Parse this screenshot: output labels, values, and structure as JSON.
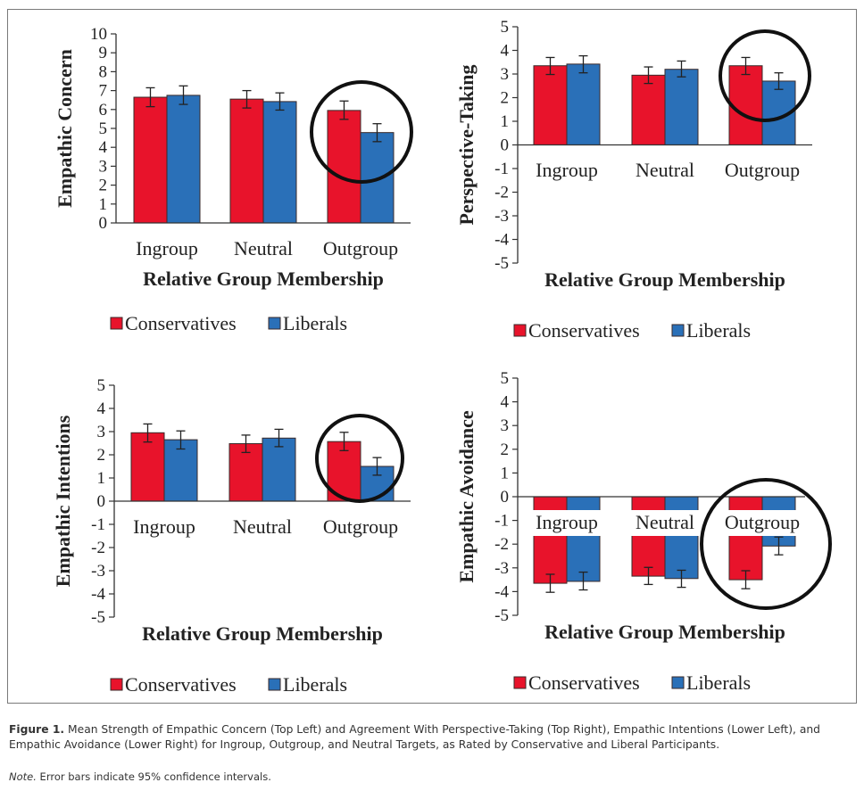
{
  "colors": {
    "conservatives": "#e8132b",
    "liberals": "#2a70b8",
    "bar_outline": "#3a2a2a",
    "axis": "#333333",
    "circle": "#111111"
  },
  "legend": [
    {
      "label": "Conservatives",
      "color_key": "conservatives"
    },
    {
      "label": "Liberals",
      "color_key": "liberals"
    }
  ],
  "chart_data": [
    {
      "id": "empathic-concern",
      "type": "bar",
      "position": "top-left",
      "title": "",
      "ylabel": "Empathic Concern",
      "xlabel": "Relative Group Membership",
      "ylim": [
        0,
        10
      ],
      "yticks": [
        0,
        1,
        2,
        3,
        4,
        5,
        6,
        7,
        8,
        9,
        10
      ],
      "categories": [
        "Ingroup",
        "Neutral",
        "Outgroup"
      ],
      "category_labels_below_axis": true,
      "series": [
        {
          "name": "Conservatives",
          "values": [
            6.65,
            6.55,
            5.95
          ],
          "ci": [
            [
              6.15,
              7.15
            ],
            [
              6.08,
              7.0
            ],
            [
              5.48,
              6.45
            ]
          ]
        },
        {
          "name": "Liberals",
          "values": [
            6.75,
            6.42,
            4.78
          ],
          "ci": [
            [
              6.27,
              7.25
            ],
            [
              5.97,
              6.88
            ],
            [
              4.3,
              5.25
            ]
          ]
        }
      ],
      "highlight": "Outgroup",
      "legend": "bottom-center",
      "grid": false
    },
    {
      "id": "perspective-taking",
      "type": "bar",
      "position": "top-right",
      "title": "",
      "ylabel": "Perspective-Taking",
      "xlabel": "Relative Group Membership",
      "ylim": [
        -5,
        5
      ],
      "yticks": [
        -5,
        -4,
        -3,
        -2,
        -1,
        0,
        1,
        2,
        3,
        4,
        5
      ],
      "categories": [
        "Ingroup",
        "Neutral",
        "Outgroup"
      ],
      "series": [
        {
          "name": "Conservatives",
          "values": [
            3.35,
            2.95,
            3.35
          ],
          "ci": [
            [
              2.98,
              3.7
            ],
            [
              2.6,
              3.3
            ],
            [
              2.98,
              3.7
            ]
          ]
        },
        {
          "name": "Liberals",
          "values": [
            3.42,
            3.2,
            2.7
          ],
          "ci": [
            [
              3.05,
              3.77
            ],
            [
              2.88,
              3.55
            ],
            [
              2.35,
              3.05
            ]
          ]
        }
      ],
      "highlight": "Outgroup",
      "legend": "bottom-center",
      "grid": false
    },
    {
      "id": "empathic-intentions",
      "type": "bar",
      "position": "bottom-left",
      "title": "",
      "ylabel": "Empathic Intentions",
      "xlabel": "Relative Group Membership",
      "ylim": [
        -5,
        5
      ],
      "yticks": [
        -5,
        -4,
        -3,
        -2,
        -1,
        0,
        1,
        2,
        3,
        4,
        5
      ],
      "categories": [
        "Ingroup",
        "Neutral",
        "Outgroup"
      ],
      "series": [
        {
          "name": "Conservatives",
          "values": [
            2.95,
            2.48,
            2.57
          ],
          "ci": [
            [
              2.55,
              3.33
            ],
            [
              2.1,
              2.85
            ],
            [
              2.18,
              2.97
            ]
          ]
        },
        {
          "name": "Liberals",
          "values": [
            2.65,
            2.72,
            1.5
          ],
          "ci": [
            [
              2.25,
              3.03
            ],
            [
              2.35,
              3.1
            ],
            [
              1.12,
              1.88
            ]
          ]
        }
      ],
      "highlight": "Outgroup",
      "legend": "bottom-center",
      "grid": false
    },
    {
      "id": "empathic-avoidance",
      "type": "bar",
      "position": "bottom-right",
      "title": "",
      "ylabel": "Empathic Avoidance",
      "xlabel": "Relative Group Membership",
      "ylim": [
        -5,
        5
      ],
      "yticks": [
        -5,
        -4,
        -3,
        -2,
        -1,
        0,
        1,
        2,
        3,
        4,
        5
      ],
      "categories": [
        "Ingroup",
        "Neutral",
        "Outgroup"
      ],
      "series": [
        {
          "name": "Conservatives",
          "values": [
            -3.65,
            -3.35,
            -3.5
          ],
          "ci": [
            [
              -4.03,
              -3.27
            ],
            [
              -3.7,
              -2.98
            ],
            [
              -3.88,
              -3.12
            ]
          ]
        },
        {
          "name": "Liberals",
          "values": [
            -3.57,
            -3.45,
            -2.08
          ],
          "ci": [
            [
              -3.93,
              -3.18
            ],
            [
              -3.82,
              -3.1
            ],
            [
              -2.45,
              -1.7
            ]
          ]
        }
      ],
      "highlight": "Outgroup",
      "legend": "bottom-center",
      "grid": false
    }
  ],
  "caption": {
    "figure_label": "Figure 1.",
    "text": "Mean Strength of Empathic Concern (Top Left) and Agreement With Perspective-Taking (Top Right), Empathic Intentions (Lower Left), and Empathic Avoidance (Lower Right) for Ingroup, Outgroup, and Neutral Targets, as Rated by Conservative and Liberal Participants.",
    "note_label": "Note.",
    "note_text": "Error bars indicate 95% confidence intervals."
  }
}
